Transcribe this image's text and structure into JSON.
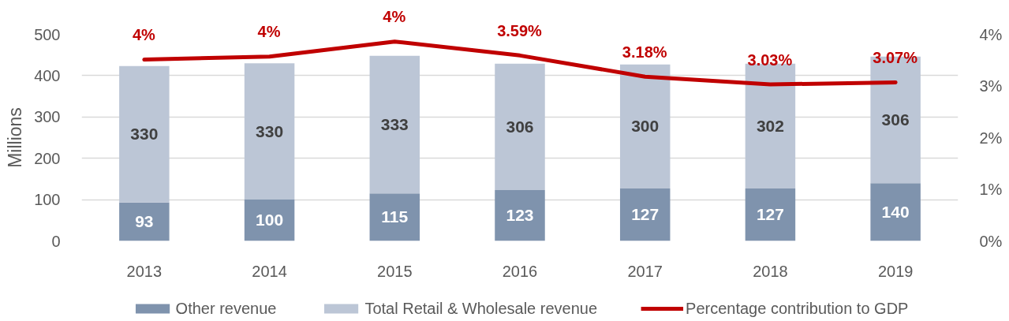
{
  "chart_data": {
    "type": "bar",
    "stacked": true,
    "ylabel": "Millions",
    "categories": [
      "2013",
      "2014",
      "2015",
      "2016",
      "2017",
      "2018",
      "2019"
    ],
    "ylim": [
      0,
      500
    ],
    "yticks": [
      0,
      100,
      200,
      300,
      400,
      500
    ],
    "y2lim": [
      0,
      4
    ],
    "y2ticks": [
      {
        "value": 0,
        "label": "0%"
      },
      {
        "value": 1,
        "label": "1%"
      },
      {
        "value": 2,
        "label": "2%"
      },
      {
        "value": 3,
        "label": "3%"
      },
      {
        "value": 4,
        "label": "4%"
      }
    ],
    "grid": "y",
    "legend": "bottom",
    "data_labels": true,
    "series": [
      {
        "name": "Other revenue",
        "color": "#7f93ad",
        "values": [
          93,
          100,
          115,
          123,
          127,
          127,
          140
        ]
      },
      {
        "name": "Total Retail & Wholesale revenue",
        "color": "#bcc6d6",
        "values": [
          330,
          330,
          333,
          306,
          300,
          302,
          306
        ]
      },
      {
        "name": "Percentage contribution to GDP",
        "type": "line",
        "axis": "y2",
        "color": "#c00000",
        "values": [
          3.51,
          3.57,
          3.86,
          3.59,
          3.18,
          3.03,
          3.07
        ],
        "value_labels": [
          "4%",
          "4%",
          "4%",
          "3.59%",
          "3.18%",
          "3.03%",
          "3.07%"
        ]
      }
    ]
  }
}
